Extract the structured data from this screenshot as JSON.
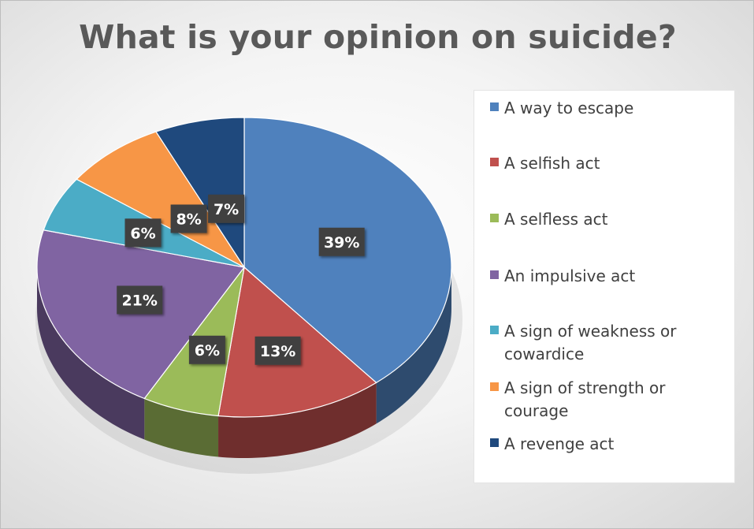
{
  "chart_data": {
    "type": "pie",
    "title": "What is your opinion on suicide?",
    "legend_position": "right",
    "slices": [
      {
        "label": "A way to escape",
        "value": 39,
        "data_label": "39%",
        "color": "#4f81bd"
      },
      {
        "label": "A selfish act",
        "value": 13,
        "data_label": "13%",
        "color": "#c0504d"
      },
      {
        "label": "A selfless act",
        "value": 6,
        "data_label": "6%",
        "color": "#9bbb59"
      },
      {
        "label": "An impulsive act",
        "value": 21,
        "data_label": "21%",
        "color": "#8064a2"
      },
      {
        "label": "A sign of weakness or cowardice",
        "value": 6,
        "data_label": "6%",
        "color": "#4bacc6"
      },
      {
        "label": "A sign of strength or courage",
        "value": 8,
        "data_label": "8%",
        "color": "#f79646"
      },
      {
        "label": "A revenge act",
        "value": 7,
        "data_label": "7%",
        "color": "#1f497d"
      }
    ]
  }
}
